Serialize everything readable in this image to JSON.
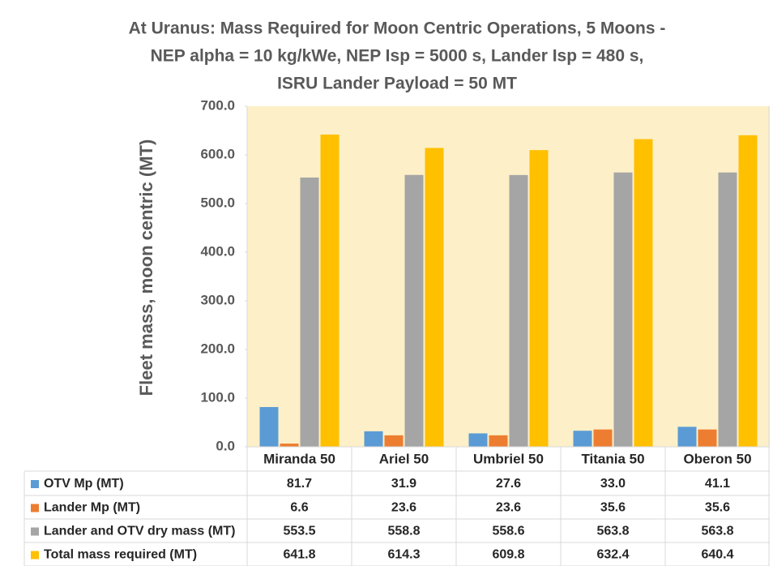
{
  "chart_data": {
    "type": "bar",
    "title_lines": [
      "At Uranus: Mass Required for Moon Centric Operations, 5 Moons -",
      "NEP alpha = 10 kg/kWe, NEP Isp = 5000 s, Lander Isp = 480 s,",
      "ISRU Lander Payload = 50 MT"
    ],
    "y_label": "Fleet mass, moon centric (MT)",
    "categories": [
      "Miranda 50",
      "Ariel 50",
      "Umbriel 50",
      "Titania 50",
      "Oberon 50"
    ],
    "series": [
      {
        "name": "OTV Mp (MT)",
        "color": "#5b9bd5",
        "values": [
          81.7,
          31.9,
          27.6,
          33.0,
          41.1
        ],
        "value_labels": [
          "81.7",
          "31.9",
          "27.6",
          "33.0",
          "41.1"
        ]
      },
      {
        "name": "Lander Mp (MT)",
        "color": "#ed7d31",
        "values": [
          6.6,
          23.6,
          23.6,
          35.6,
          35.6
        ],
        "value_labels": [
          "6.6",
          "23.6",
          "23.6",
          "35.6",
          "35.6"
        ]
      },
      {
        "name": "Lander and OTV dry mass (MT)",
        "color": "#a5a5a5",
        "values": [
          553.5,
          558.8,
          558.6,
          563.8,
          563.8
        ],
        "value_labels": [
          "553.5",
          "558.8",
          "558.6",
          "563.8",
          "563.8"
        ]
      },
      {
        "name": "Total mass required (MT)",
        "color": "#ffc000",
        "values": [
          641.8,
          614.3,
          609.8,
          632.4,
          640.4
        ],
        "value_labels": [
          "641.8",
          "614.3",
          "609.8",
          "632.4",
          "640.4"
        ]
      }
    ],
    "ylim": [
      0,
      700
    ],
    "yticks": [
      {
        "value": 0,
        "label": "0.0"
      },
      {
        "value": 100,
        "label": "100.0"
      },
      {
        "value": 200,
        "label": "200.0"
      },
      {
        "value": 300,
        "label": "300.0"
      },
      {
        "value": 400,
        "label": "400.0"
      },
      {
        "value": 500,
        "label": "500.0"
      },
      {
        "value": 600,
        "label": "600.0"
      },
      {
        "value": 700,
        "label": "700.0"
      }
    ],
    "plot_background": "#fdf0c8"
  }
}
